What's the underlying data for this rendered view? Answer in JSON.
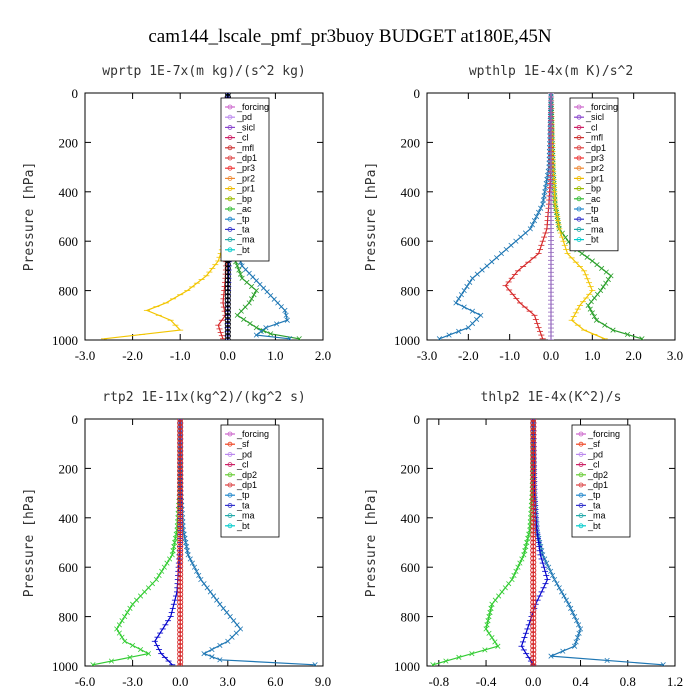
{
  "figure_title": "cam144_lscale_pmf_pr3buoy  BUDGET at180E,45N",
  "chart_data": [
    {
      "type": "line",
      "title": "wprtp  1E-7x(m kg)/(s^2 kg)",
      "ylabel": "Pressure [hPa]",
      "xlim": [
        -3.0,
        2.0
      ],
      "ylim": [
        1000,
        0
      ],
      "xticks": [
        "-3.0",
        "-2.0",
        "-1.0",
        "0.0",
        "1.0",
        "2.0"
      ],
      "yticks": [
        "0",
        "200",
        "400",
        "600",
        "800",
        "1000"
      ],
      "legend": [
        "_forcing",
        "_pd",
        "_sicl",
        "_cl",
        "_mfl",
        "_dp1",
        "_pr3",
        "_pr2",
        "_pr1",
        "_bp",
        "_ac",
        "_tp",
        "_ta",
        "_ma",
        "_bt"
      ],
      "series": [
        {
          "name": "_pr1",
          "color": "#f2c500",
          "marker": "+",
          "x": [
            0,
            0,
            -0.02,
            -0.05,
            -0.1,
            -0.2,
            -0.45,
            -0.85,
            -1.3,
            -1.7,
            -1.2,
            -1.0,
            -2.6
          ],
          "y": [
            0,
            300,
            450,
            550,
            620,
            680,
            740,
            800,
            850,
            880,
            920,
            960,
            995
          ]
        },
        {
          "name": "_ac",
          "color": "#2ca02c",
          "marker": "x",
          "x": [
            0,
            0,
            0.02,
            0.05,
            0.1,
            0.3,
            0.6,
            0.45,
            0.2,
            0.6,
            0.9,
            1.5
          ],
          "y": [
            0,
            300,
            450,
            550,
            650,
            750,
            800,
            850,
            900,
            950,
            975,
            995
          ]
        },
        {
          "name": "_tp",
          "color": "#1f77b4",
          "marker": "x",
          "x": [
            0,
            0,
            0.05,
            0.1,
            0.15,
            0.3,
            0.6,
            0.9,
            1.2,
            1.25,
            0.8,
            0.6,
            1.3
          ],
          "y": [
            0,
            300,
            450,
            550,
            620,
            700,
            760,
            820,
            880,
            920,
            950,
            980,
            995
          ]
        },
        {
          "name": "_dp1",
          "color": "#d62728",
          "marker": "+",
          "x": [
            0,
            0,
            -0.02,
            -0.05,
            -0.1,
            -0.05,
            -0.2,
            -0.15,
            -0.1
          ],
          "y": [
            0,
            500,
            650,
            750,
            850,
            900,
            940,
            970,
            995
          ]
        },
        {
          "name": "_ta",
          "color": "#0000cc",
          "marker": "+",
          "x": [
            0,
            0,
            0.02,
            0,
            0
          ],
          "y": [
            0,
            500,
            700,
            850,
            1000
          ]
        },
        {
          "name": "_forcing",
          "color": "#000000",
          "marker": "o",
          "x": [
            0,
            0
          ],
          "y": [
            0,
            1000
          ]
        }
      ]
    },
    {
      "type": "line",
      "title": "wpthlp  1E-4x(m K)/s^2",
      "ylabel": "Pressure [hPa]",
      "xlim": [
        -3.0,
        3.0
      ],
      "ylim": [
        1000,
        0
      ],
      "xticks": [
        "-3.0",
        "-2.0",
        "-1.0",
        "0.0",
        "1.0",
        "2.0",
        "3.0"
      ],
      "yticks": [
        "0",
        "200",
        "400",
        "600",
        "800",
        "1000"
      ],
      "legend": [
        "_forcing",
        "_sicl",
        "_cl",
        "_mfl",
        "_dp1",
        "_pr3",
        "_pr2",
        "_pr1",
        "_bp",
        "_ac",
        "_tp",
        "_ta",
        "_ma",
        "_bt"
      ],
      "series": [
        {
          "name": "_ac",
          "color": "#2ca02c",
          "marker": "x",
          "x": [
            0,
            0.05,
            0.1,
            0.2,
            0.5,
            1.0,
            1.45,
            1.2,
            0.9,
            1.1,
            1.5,
            2.2
          ],
          "y": [
            0,
            300,
            450,
            550,
            620,
            680,
            740,
            800,
            860,
            920,
            960,
            995
          ]
        },
        {
          "name": "_pr1",
          "color": "#f2c500",
          "marker": "+",
          "x": [
            0,
            0.05,
            0.1,
            0.2,
            0.4,
            0.8,
            1.0,
            0.7,
            0.5,
            0.8,
            1.3
          ],
          "y": [
            0,
            300,
            450,
            550,
            650,
            720,
            800,
            860,
            920,
            960,
            995
          ]
        },
        {
          "name": "_tp",
          "color": "#1f77b4",
          "marker": "x",
          "x": [
            0,
            -0.05,
            -0.2,
            -0.5,
            -1.2,
            -1.9,
            -2.3,
            -1.7,
            -2.0,
            -2.7
          ],
          "y": [
            0,
            300,
            450,
            550,
            650,
            750,
            850,
            900,
            950,
            995
          ]
        },
        {
          "name": "_dp1",
          "color": "#d62728",
          "marker": "+",
          "x": [
            0,
            0,
            -0.05,
            -0.1,
            -0.3,
            -0.8,
            -1.1,
            -0.75,
            -0.4,
            -0.3,
            -0.2
          ],
          "y": [
            0,
            300,
            450,
            550,
            650,
            720,
            780,
            850,
            900,
            950,
            995
          ]
        },
        {
          "name": "_bp",
          "color": "#9467bd",
          "marker": "+",
          "x": [
            0,
            0,
            0
          ],
          "y": [
            0,
            500,
            1000
          ]
        }
      ]
    },
    {
      "type": "line",
      "title": "rtp2  1E-11x(kg^2)/(kg^2 s)",
      "ylabel": "Pressure [hPa]",
      "xlim": [
        -6.0,
        9.0
      ],
      "ylim": [
        1000,
        0
      ],
      "xticks": [
        "-6.0",
        "-3.0",
        "0.0",
        "3.0",
        "6.0",
        "9.0"
      ],
      "yticks": [
        "0",
        "200",
        "400",
        "600",
        "800",
        "1000"
      ],
      "legend": [
        "_forcing",
        "_sf",
        "_pd",
        "_cl",
        "_dp2",
        "_dp1",
        "_tp",
        "_ta",
        "_ma",
        "_bt"
      ],
      "series": [
        {
          "name": "_dp1",
          "color": "#33cc33",
          "marker": "x",
          "x": [
            0,
            -0.05,
            -0.2,
            -0.5,
            -1.5,
            -3.0,
            -4.0,
            -3.5,
            -2.0,
            -5.5
          ],
          "y": [
            0,
            300,
            450,
            550,
            650,
            750,
            850,
            900,
            950,
            995
          ]
        },
        {
          "name": "_tp",
          "color": "#1f77b4",
          "marker": "x",
          "x": [
            0,
            0.05,
            0.2,
            0.5,
            1.3,
            2.5,
            3.8,
            3.0,
            1.5,
            2.5,
            8.5
          ],
          "y": [
            0,
            300,
            450,
            550,
            650,
            750,
            850,
            900,
            950,
            975,
            995
          ]
        },
        {
          "name": "_ta",
          "color": "#0000cc",
          "marker": "+",
          "x": [
            0,
            0,
            -0.2,
            -0.6,
            -1.6,
            -1.2,
            -0.5
          ],
          "y": [
            0,
            500,
            700,
            800,
            900,
            950,
            995
          ]
        },
        {
          "name": "_forcing",
          "color": "#d62728",
          "marker": "o",
          "x": [
            0,
            0
          ],
          "y": [
            0,
            1000
          ]
        }
      ]
    },
    {
      "type": "line",
      "title": "thlp2  1E-4x(K^2)/s",
      "ylabel": "Pressure [hPa]",
      "xlim": [
        -0.9,
        1.2
      ],
      "ylim": [
        1000,
        0
      ],
      "xticks": [
        "-0.8",
        "-0.4",
        "0.0",
        "0.4",
        "0.8",
        "1.2"
      ],
      "yticks": [
        "0",
        "200",
        "400",
        "600",
        "800",
        "1000"
      ],
      "legend": [
        "_forcing",
        "_sf",
        "_pd",
        "_cl",
        "_dp2",
        "_dp1",
        "_tp",
        "_ta",
        "_ma",
        "_bt"
      ],
      "series": [
        {
          "name": "_dp1",
          "color": "#33cc33",
          "marker": "x",
          "x": [
            0,
            -0.01,
            -0.03,
            -0.08,
            -0.18,
            -0.35,
            -0.4,
            -0.3,
            -0.85
          ],
          "y": [
            0,
            300,
            450,
            550,
            650,
            750,
            850,
            920,
            995
          ]
        },
        {
          "name": "_tp",
          "color": "#1f77b4",
          "marker": "x",
          "x": [
            0,
            0.01,
            0.03,
            0.08,
            0.18,
            0.3,
            0.4,
            0.35,
            0.15,
            1.1
          ],
          "y": [
            0,
            300,
            450,
            550,
            650,
            750,
            850,
            920,
            960,
            995
          ]
        },
        {
          "name": "_ta",
          "color": "#0000cc",
          "marker": "+",
          "x": [
            0,
            0.01,
            0.03,
            0.06,
            0.12,
            0.02,
            -0.05,
            -0.1,
            0
          ],
          "y": [
            0,
            300,
            450,
            550,
            650,
            750,
            850,
            920,
            995
          ]
        },
        {
          "name": "_forcing",
          "color": "#d62728",
          "marker": "o",
          "x": [
            0,
            0
          ],
          "y": [
            0,
            1000
          ]
        }
      ]
    }
  ]
}
